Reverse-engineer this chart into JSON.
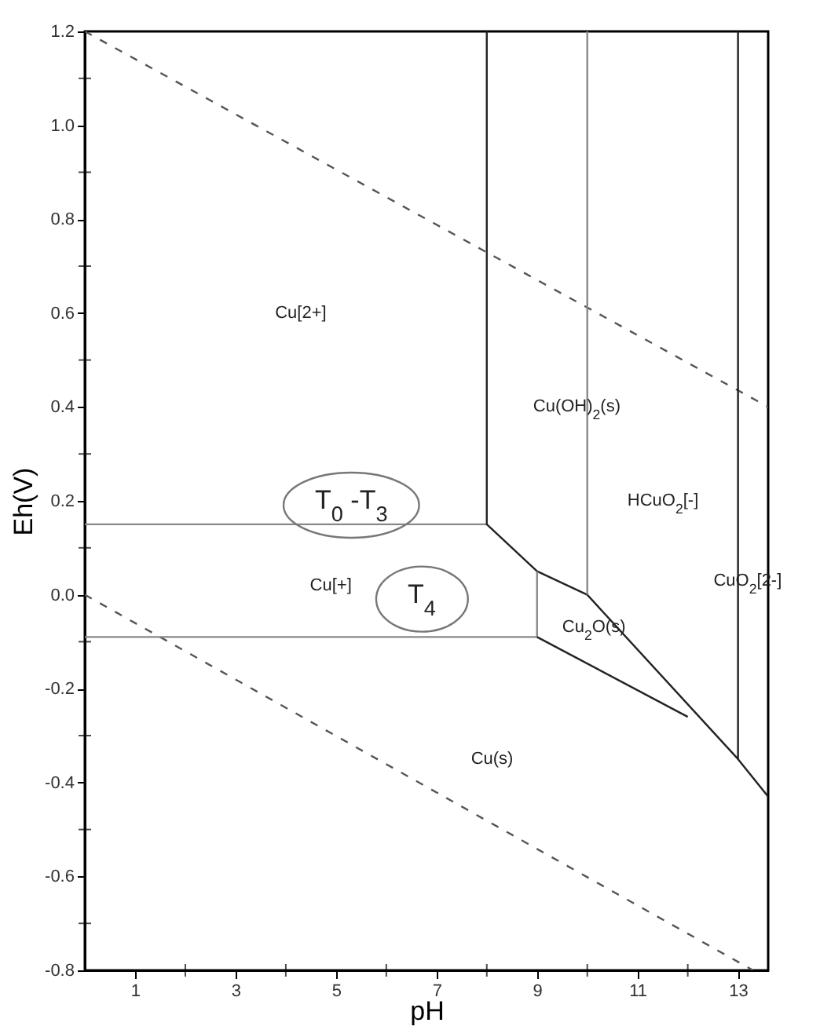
{
  "chart_data": {
    "type": "line",
    "xlabel": "pH",
    "ylabel": "Eh(V)",
    "xlim": [
      0,
      13.6
    ],
    "ylim": [
      -0.8,
      1.2
    ],
    "xticks": [
      1,
      {
        "value": 2,
        "label": null
      },
      3,
      {
        "value": 4,
        "label": null
      },
      5,
      {
        "value": 6,
        "label": null
      },
      7,
      {
        "value": 8,
        "label": null
      },
      9,
      {
        "value": 10,
        "label": null
      },
      11,
      {
        "value": 12,
        "label": null
      },
      13
    ],
    "yticks": [
      {
        "value": -0.8,
        "label": "-0.8"
      },
      {
        "value": -0.7,
        "label": null
      },
      {
        "value": -0.6,
        "label": "-0.6"
      },
      {
        "value": -0.5,
        "label": null
      },
      {
        "value": -0.4,
        "label": "-0.4"
      },
      {
        "value": -0.3,
        "label": null
      },
      {
        "value": -0.2,
        "label": "-0.2"
      },
      {
        "value": -0.1,
        "label": null
      },
      {
        "value": 0,
        "label": "0.0"
      },
      {
        "value": 0.1,
        "label": null
      },
      0.2,
      {
        "value": 0.3,
        "label": null
      },
      0.4,
      {
        "value": 0.5,
        "label": null
      },
      0.6,
      {
        "value": 0.7,
        "label": null
      },
      0.8,
      {
        "value": 0.9,
        "label": null
      },
      {
        "value": 1,
        "label": "1.0"
      },
      {
        "value": 1.1,
        "label": null
      },
      1.2
    ],
    "grid": false,
    "series": [
      {
        "x": [
          0,
          13.6
        ],
        "values": [
          1.2,
          0.4
        ],
        "color": "#555555",
        "line_style": "dashed"
      },
      {
        "x": [
          0,
          13.3
        ],
        "values": [
          0,
          -0.8
        ],
        "color": "#555555",
        "line_style": "dashed"
      },
      {
        "x": [
          0,
          8
        ],
        "values": [
          0.15,
          0.15
        ],
        "color": "#888888",
        "line_style": "solid"
      },
      {
        "x": [
          8,
          8,
          9,
          10,
          13,
          13.6
        ],
        "values": [
          1.2,
          0.15,
          0.05,
          0,
          -0.35,
          -0.43
        ],
        "color": "#222222",
        "line_style": "solid"
      },
      {
        "x": [
          0,
          9,
          9
        ],
        "values": [
          -0.09,
          -0.09,
          0.05
        ],
        "color": "#888888",
        "line_style": "solid"
      },
      {
        "x": [
          9,
          12
        ],
        "values": [
          -0.09,
          -0.26
        ],
        "color": "#222222",
        "line_style": "solid"
      },
      {
        "x": [
          10,
          10
        ],
        "values": [
          1.2,
          0
        ],
        "color": "#888888",
        "line_style": "solid"
      },
      {
        "x": [
          13,
          13
        ],
        "values": [
          1.2,
          -0.35
        ],
        "color": "#222222",
        "line_style": "solid"
      }
    ],
    "annotations": [
      "Cu[2+]",
      "Cu(OH)$_{2}$(s)",
      "T$_{0}$ -T$_{3}$",
      "HCuO$_{2}$[-]",
      "Cu[+]",
      "T$_{4}$",
      "Cu$_{2}$O(s)",
      "Cu(s)",
      "CuO$_{2}$[2-]"
    ]
  }
}
